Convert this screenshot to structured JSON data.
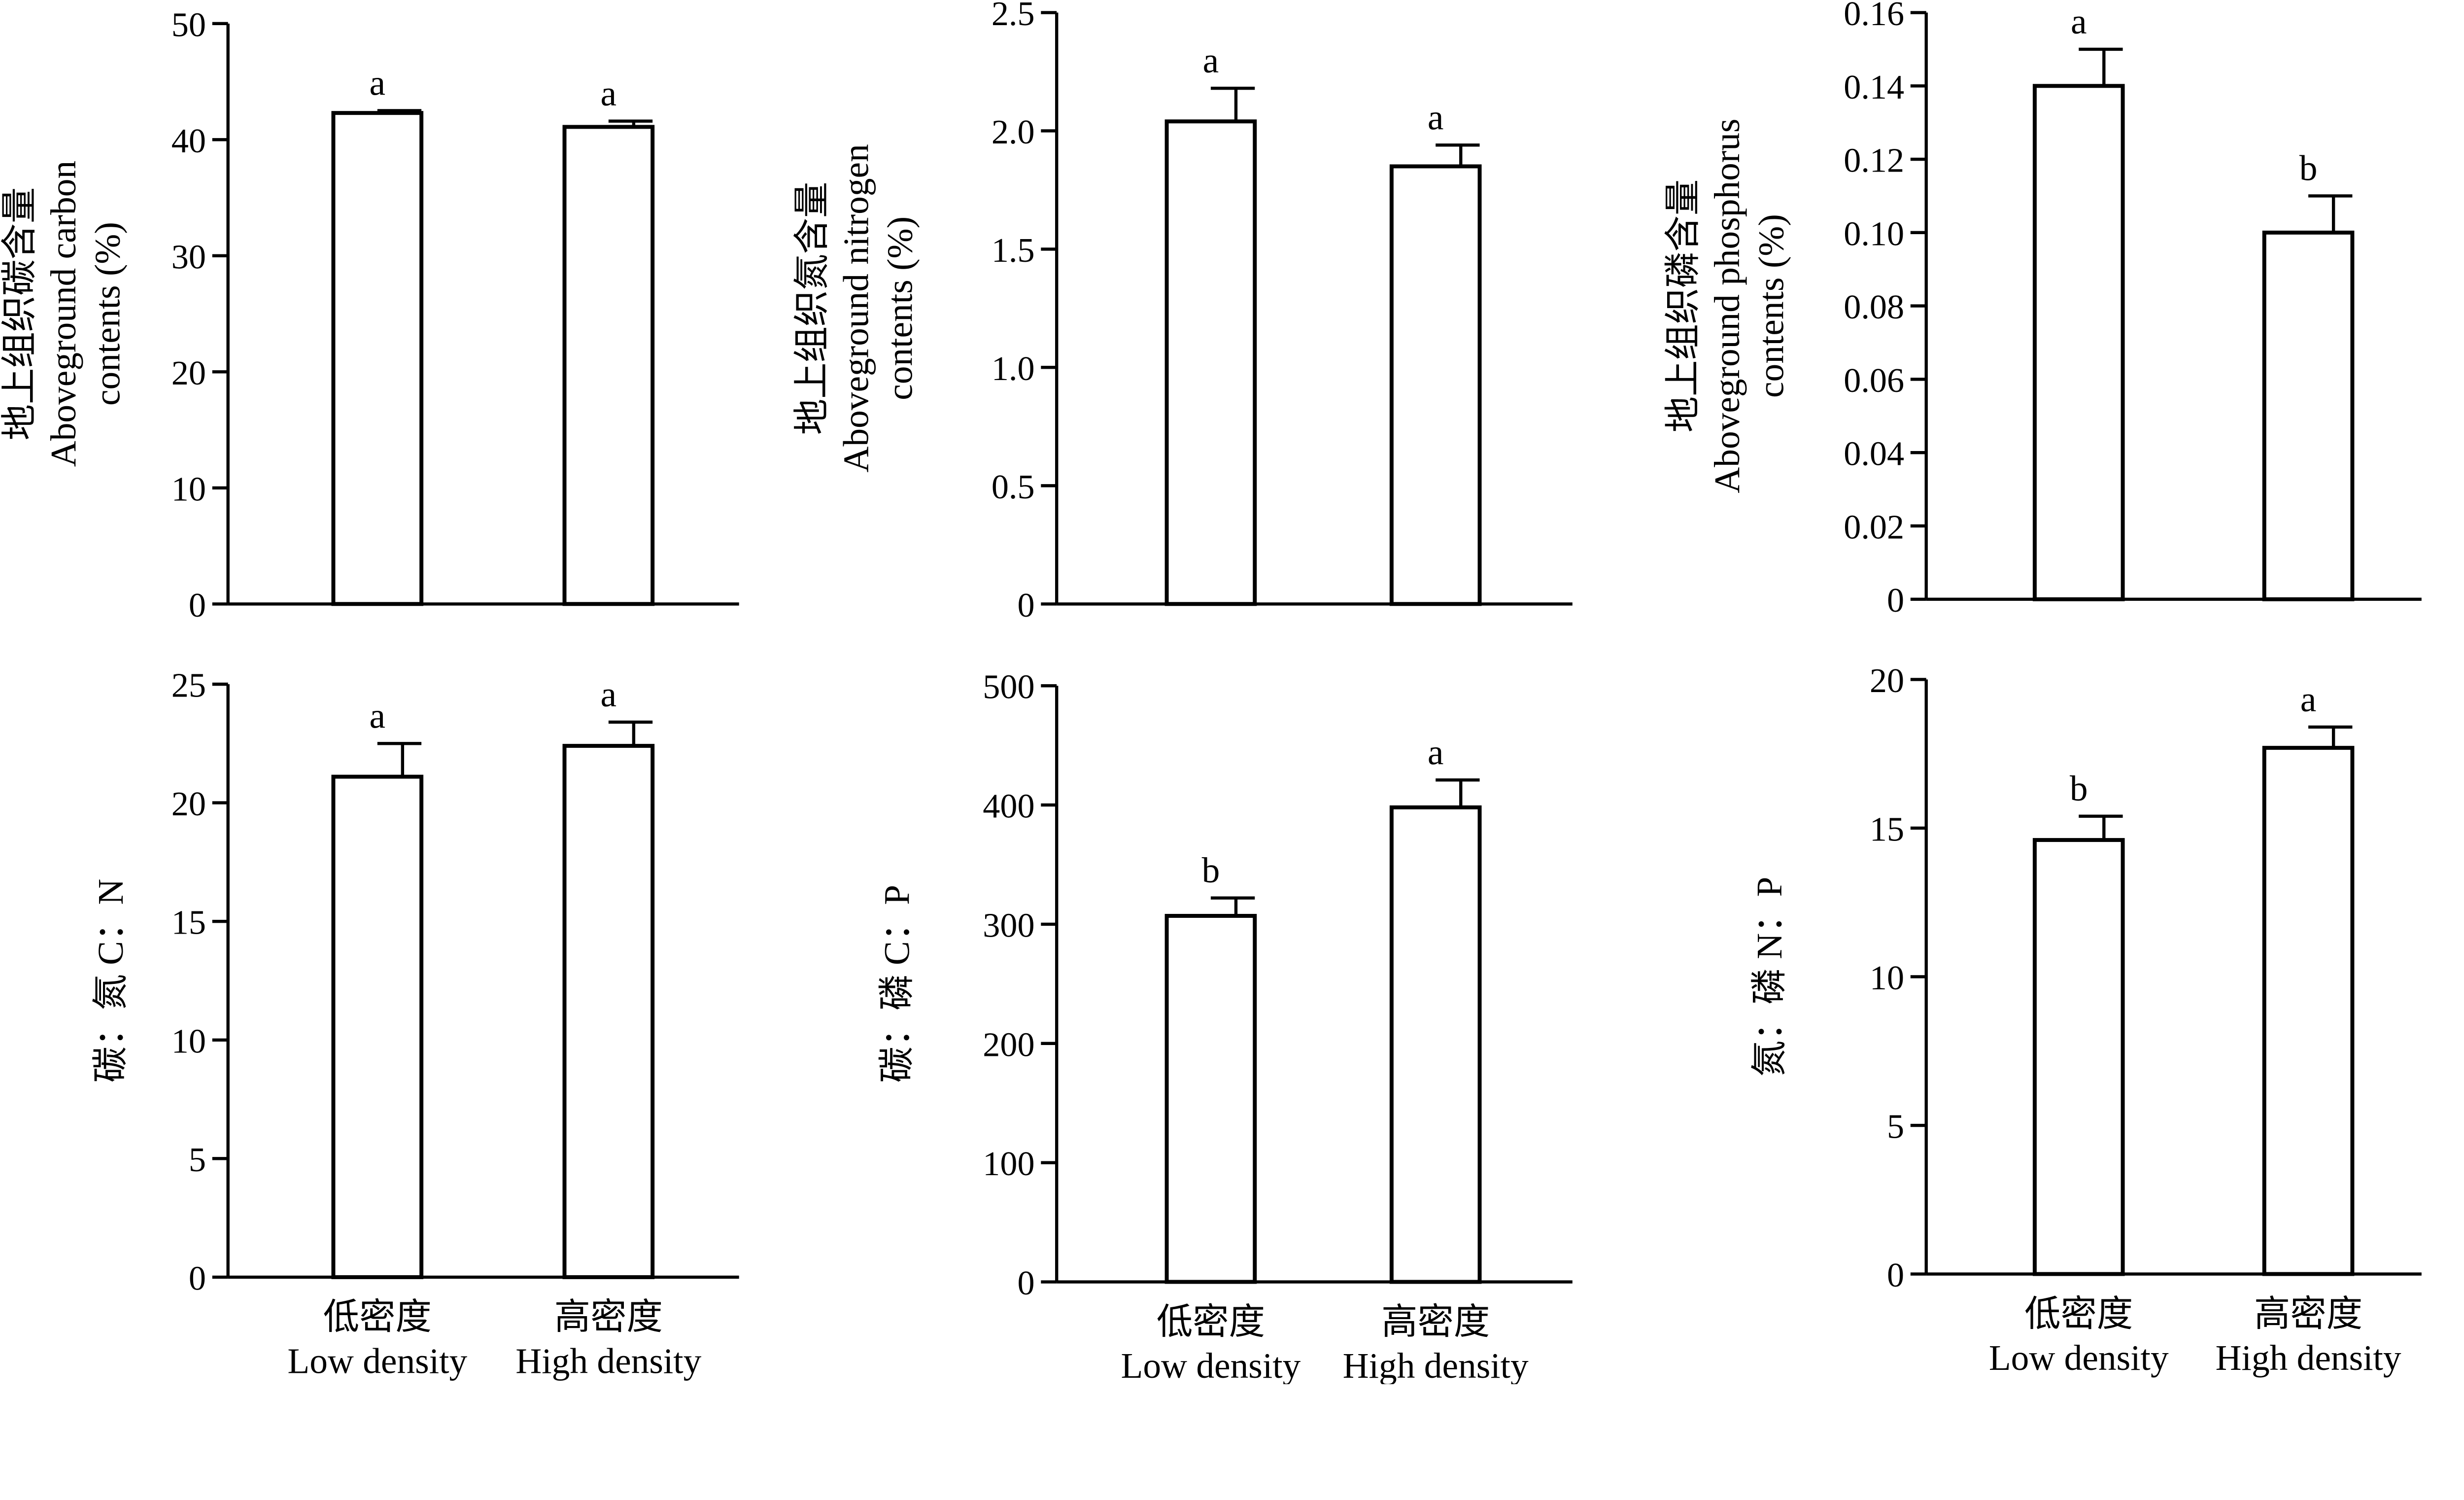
{
  "chart_data": [
    {
      "type": "bar",
      "ylabel_lines": [
        "地上组织碳含量",
        "Aboveground carbon",
        "contents (%)"
      ],
      "ylim": [
        0,
        50
      ],
      "ticks": [
        0,
        10,
        20,
        30,
        40,
        50
      ],
      "tick_labels": [
        "0",
        "10",
        "20",
        "30",
        "40",
        "50"
      ],
      "categories": [
        "Low density",
        "High density"
      ],
      "values": [
        42.3,
        41.1
      ],
      "errors": [
        0.2,
        0.5
      ],
      "letters": [
        "a",
        "a"
      ]
    },
    {
      "type": "bar",
      "ylabel_lines": [
        "地上组织氮含量",
        "Aboveground nitrogen",
        "contents (%)"
      ],
      "ylim": [
        0,
        2.5
      ],
      "ticks": [
        0,
        0.5,
        1,
        1.5,
        2,
        2.5
      ],
      "tick_labels": [
        "0",
        "0.5",
        "1.0",
        "1.5",
        "2.0",
        "2.5"
      ],
      "categories": [
        "Low density",
        "High density"
      ],
      "values": [
        2.04,
        1.85
      ],
      "errors": [
        0.14,
        0.09
      ],
      "letters": [
        "a",
        "a"
      ]
    },
    {
      "type": "bar",
      "ylabel_lines": [
        "地上组织磷含量",
        "Aboveground phosphorus",
        "contents (%)"
      ],
      "ylim": [
        0,
        0.16
      ],
      "ticks": [
        0,
        0.02,
        0.04,
        0.06,
        0.08,
        0.1,
        0.12,
        0.14,
        0.16
      ],
      "tick_labels": [
        "0",
        "0.02",
        "0.04",
        "0.06",
        "0.08",
        "0.10",
        "0.12",
        "0.14",
        "0.16"
      ],
      "categories": [
        "Low density",
        "High density"
      ],
      "values": [
        0.14,
        0.1
      ],
      "errors": [
        0.01,
        0.01
      ],
      "letters": [
        "a",
        "b"
      ]
    },
    {
      "type": "bar",
      "ylabel_lines": [
        "碳：氮 C：N"
      ],
      "ylim": [
        0,
        25
      ],
      "ticks": [
        0,
        5,
        10,
        15,
        20,
        25
      ],
      "tick_labels": [
        "0",
        "5",
        "10",
        "15",
        "20",
        "25"
      ],
      "categories": [
        "Low density",
        "High density"
      ],
      "values": [
        21.1,
        22.4
      ],
      "errors": [
        1.4,
        1.0
      ],
      "letters": [
        "a",
        "a"
      ],
      "xlabels_cn": [
        "低密度",
        "高密度"
      ],
      "xlabels_en": [
        "Low density",
        "High density"
      ]
    },
    {
      "type": "bar",
      "ylabel_lines": [
        "碳：磷 C：P"
      ],
      "ylim": [
        0,
        500
      ],
      "ticks": [
        0,
        100,
        200,
        300,
        400,
        500
      ],
      "tick_labels": [
        "0",
        "100",
        "200",
        "300",
        "400",
        "500"
      ],
      "categories": [
        "Low density",
        "High density"
      ],
      "values": [
        307,
        398
      ],
      "errors": [
        15,
        23
      ],
      "letters": [
        "b",
        "a"
      ],
      "xlabels_cn": [
        "低密度",
        "高密度"
      ],
      "xlabels_en": [
        "Low density",
        "High density"
      ]
    },
    {
      "type": "bar",
      "ylabel_lines": [
        "氮：磷 N：P"
      ],
      "ylim": [
        0,
        20
      ],
      "ticks": [
        0,
        5,
        10,
        15,
        20
      ],
      "tick_labels": [
        "0",
        "5",
        "10",
        "15",
        "20"
      ],
      "categories": [
        "Low density",
        "High density"
      ],
      "values": [
        14.6,
        17.7
      ],
      "errors": [
        0.8,
        0.7
      ],
      "letters": [
        "b",
        "a"
      ],
      "xlabels_cn": [
        "低密度",
        "高密度"
      ],
      "xlabels_en": [
        "Low density",
        "High density"
      ]
    }
  ]
}
